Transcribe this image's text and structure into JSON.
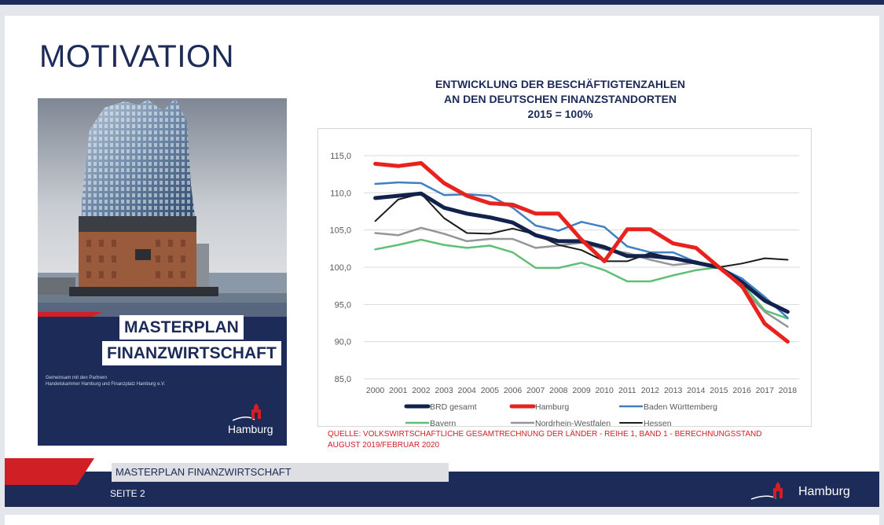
{
  "slide": {
    "heading": "MOTIVATION",
    "cover": {
      "title_line1": "MASTERPLAN",
      "title_line2": "FINANZWIRTSCHAFT",
      "partner_line1": "Gemeinsam mit den Partnern",
      "partner_line2": "Handelskammer Hamburg und Finanzplatz Hamburg e.V.",
      "logo_text": "Hamburg"
    },
    "source_line1": "QUELLE: VOLKSWIRTSCHAFTLICHE GESAMTRECHNUNG DER LÄNDER - REIHE 1, BAND 1 - BERECHNUNGSSTAND",
    "source_line2": "AUGUST 2019/FEBRUAR 2020",
    "footer": {
      "title": "MASTERPLAN FINANZWIRTSCHAFT",
      "page": "SEITE 2",
      "logo_text": "Hamburg"
    }
  },
  "colors": {
    "navy": "#1c2b57",
    "red": "#d11f26"
  },
  "chart_data": {
    "type": "line",
    "title_lines": [
      "ENTWICKLUNG DER BESCHÄFTIGTENZAHLEN",
      "AN DEN DEUTSCHEN FINANZSTANDORTEN",
      "2015 = 100%"
    ],
    "x": [
      "2000",
      "2001",
      "2002",
      "2003",
      "2004",
      "2005",
      "2006",
      "2007",
      "2008",
      "2009",
      "2010",
      "2011",
      "2012",
      "2013",
      "2014",
      "2015",
      "2016",
      "2017",
      "2018"
    ],
    "ylim": [
      85,
      115
    ],
    "yticks": [
      "85,0",
      "90,0",
      "95,0",
      "100,0",
      "105,0",
      "110,0",
      "115,0"
    ],
    "grid": true,
    "legend_position": "bottom",
    "series": [
      {
        "name": "BRD gesamt",
        "color": "#12224d",
        "width": 5,
        "values": [
          109.3,
          109.6,
          109.9,
          108.0,
          107.2,
          106.7,
          106.0,
          104.3,
          103.5,
          103.5,
          102.7,
          101.5,
          101.5,
          101.2,
          100.6,
          100.0,
          98.0,
          95.5,
          94.0
        ]
      },
      {
        "name": "Hamburg",
        "color": "#e8221c",
        "width": 5,
        "values": [
          113.9,
          113.6,
          114.0,
          111.3,
          109.6,
          108.6,
          108.4,
          107.2,
          107.2,
          103.7,
          100.8,
          105.1,
          105.1,
          103.2,
          102.6,
          100.0,
          97.5,
          92.4,
          90.0
        ]
      },
      {
        "name": "Baden Württemberg",
        "color": "#3f7fc4",
        "width": 2.5,
        "values": [
          111.2,
          111.4,
          111.3,
          109.7,
          109.8,
          109.6,
          108.0,
          105.6,
          104.9,
          106.1,
          105.4,
          102.8,
          102.0,
          102.0,
          100.7,
          100.0,
          98.5,
          96.0,
          93.2
        ]
      },
      {
        "name": "Bayern",
        "color": "#5fbf76",
        "width": 2.5,
        "values": [
          102.4,
          103.0,
          103.7,
          103.0,
          102.6,
          102.9,
          102.0,
          99.9,
          99.9,
          100.6,
          99.6,
          98.1,
          98.1,
          98.9,
          99.6,
          100.0,
          97.8,
          94.2,
          93.1
        ]
      },
      {
        "name": "Nordrhein-Westfalen",
        "color": "#939598",
        "width": 2.5,
        "values": [
          104.6,
          104.3,
          105.3,
          104.5,
          103.5,
          103.8,
          103.8,
          102.6,
          102.9,
          103.3,
          102.4,
          101.9,
          101.0,
          100.3,
          100.6,
          100.0,
          97.2,
          94.0,
          92.0
        ]
      },
      {
        "name": "Hessen",
        "color": "#1b1b1b",
        "width": 2,
        "values": [
          106.2,
          109.1,
          109.9,
          106.6,
          104.6,
          104.5,
          105.2,
          104.4,
          103.0,
          102.3,
          100.8,
          100.8,
          101.9,
          101.2,
          100.8,
          100.0,
          100.5,
          101.2,
          101.0
        ]
      }
    ]
  }
}
